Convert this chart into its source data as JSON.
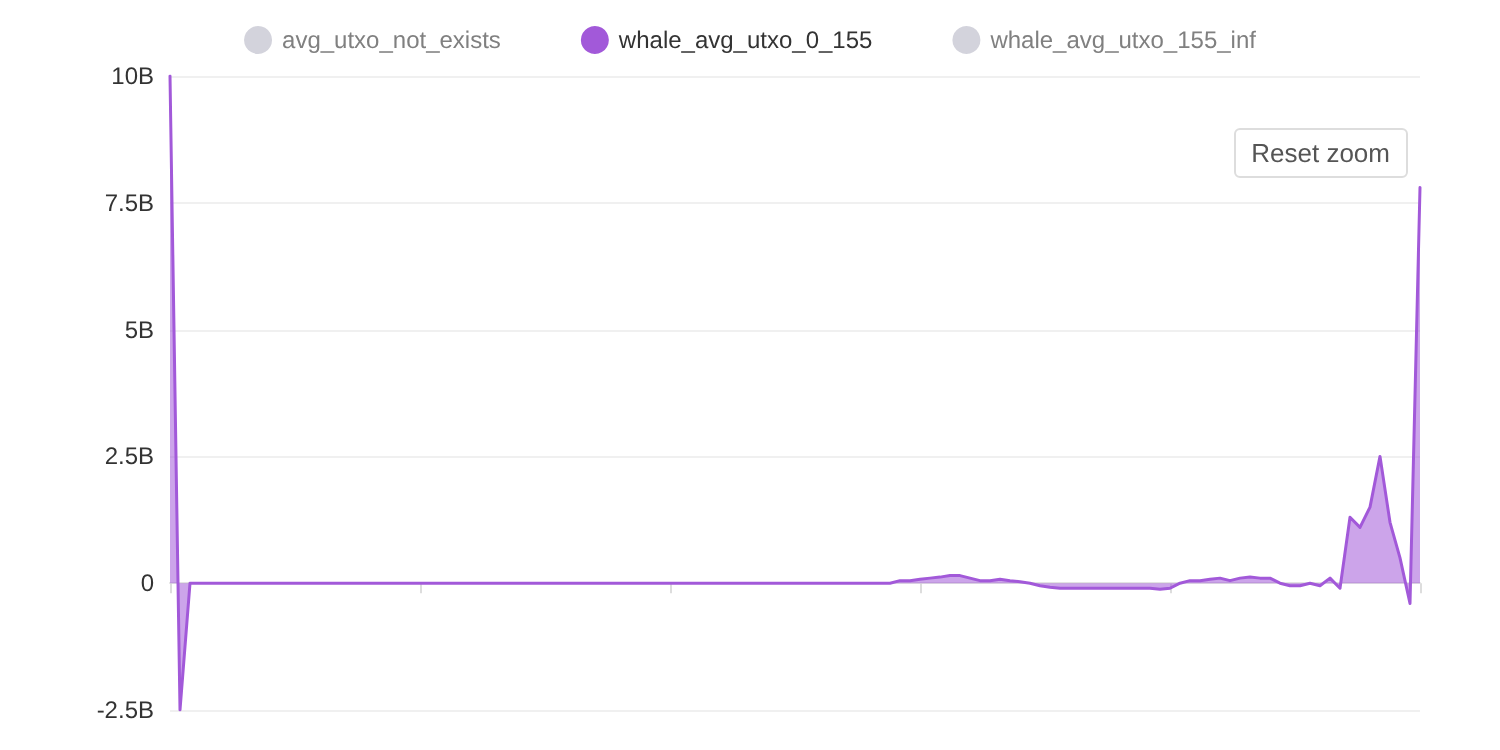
{
  "chart_data": {
    "type": "area",
    "categories": [
      null,
      null,
      null,
      null,
      null,
      null,
      null,
      null,
      null,
      null,
      null,
      null,
      null,
      null,
      null,
      null,
      null,
      null,
      null,
      null,
      null,
      null,
      null,
      null,
      null,
      null,
      null,
      null,
      null,
      null,
      null,
      null,
      null,
      null,
      null,
      null,
      null,
      null,
      null,
      null,
      null,
      null,
      null,
      null,
      null,
      null,
      null,
      null,
      null,
      null,
      null,
      null,
      null,
      null,
      null,
      null,
      null,
      null,
      null,
      null,
      null,
      null,
      null,
      null,
      null,
      null,
      null,
      null,
      null,
      null,
      null,
      null,
      null,
      null,
      null,
      null,
      null,
      null,
      null,
      null,
      null,
      null,
      null,
      null,
      null,
      null,
      null,
      null,
      null,
      null,
      null,
      null,
      null,
      null,
      null,
      null,
      null,
      null,
      null,
      null,
      null,
      null,
      null,
      null,
      null,
      null,
      null,
      null,
      null,
      null,
      null,
      null,
      null,
      null,
      null,
      null,
      null,
      null,
      null,
      null,
      null,
      null,
      null,
      null,
      null,
      null
    ],
    "series": [
      {
        "name": "avg_utxo_not_exists",
        "color": "#d3d3dc",
        "values": [
          null,
          null,
          null,
          null,
          null,
          null,
          null,
          null,
          null,
          null,
          null,
          null,
          null,
          null,
          null,
          null,
          null,
          null,
          null,
          null,
          null,
          null,
          null,
          null,
          null,
          null,
          null,
          null,
          null,
          null,
          null,
          null,
          null,
          null,
          null,
          null,
          null,
          null,
          null,
          null,
          null,
          null,
          null,
          null,
          null,
          null,
          null,
          null,
          null,
          null,
          null,
          null,
          null,
          null,
          null,
          null,
          null,
          null,
          null,
          null,
          null,
          null,
          null,
          null,
          null,
          null,
          null,
          null,
          null,
          null,
          null,
          null,
          null,
          null,
          null,
          null,
          null,
          null,
          null,
          null,
          null,
          null,
          null,
          null,
          null,
          null,
          null,
          null,
          null,
          null,
          null,
          null,
          null,
          null,
          null,
          null,
          null,
          null,
          null,
          null,
          null,
          null,
          null,
          null,
          null,
          null,
          null,
          null,
          null,
          null,
          null,
          null,
          null,
          null,
          null,
          null,
          null,
          null,
          null,
          null,
          null,
          null,
          null,
          null,
          null,
          null
        ]
      },
      {
        "name": "whale_avg_utxo_0_155",
        "color": "#a259d9",
        "values": [
          10,
          -2.5,
          0,
          0,
          0,
          0,
          0,
          0,
          0,
          0,
          0,
          0,
          0,
          0,
          0,
          0,
          0,
          0,
          0,
          0,
          0,
          0,
          0,
          0,
          0,
          0,
          0,
          0,
          0,
          0,
          0,
          0,
          0,
          0,
          0,
          0,
          0,
          0,
          0,
          0,
          0,
          0,
          0,
          0,
          0,
          0,
          0,
          0,
          0,
          0,
          0,
          0,
          0,
          0,
          0,
          0,
          0,
          0,
          0,
          0,
          0,
          0,
          0,
          0,
          0,
          0,
          0,
          0,
          0,
          0,
          0,
          0,
          0,
          0.05,
          0.05,
          0.08,
          0.1,
          0.12,
          0.15,
          0.15,
          0.1,
          0.05,
          0.05,
          0.08,
          0.05,
          0.03,
          0,
          -0.05,
          -0.08,
          -0.1,
          -0.1,
          -0.1,
          -0.1,
          -0.1,
          -0.1,
          -0.1,
          -0.1,
          -0.1,
          -0.1,
          -0.12,
          -0.1,
          0,
          0.05,
          0.05,
          0.08,
          0.1,
          0.05,
          0.1,
          0.12,
          0.1,
          0.1,
          0,
          -0.05,
          -0.05,
          0,
          -0.05,
          0.1,
          -0.1,
          1.3,
          1.1,
          1.5,
          2.5,
          1.2,
          0.5,
          -0.4,
          7.8
        ]
      },
      {
        "name": "whale_avg_utxo_155_inf",
        "color": "#d3d3dc",
        "values": [
          null,
          null,
          null,
          null,
          null,
          null,
          null,
          null,
          null,
          null,
          null,
          null,
          null,
          null,
          null,
          null,
          null,
          null,
          null,
          null,
          null,
          null,
          null,
          null,
          null,
          null,
          null,
          null,
          null,
          null,
          null,
          null,
          null,
          null,
          null,
          null,
          null,
          null,
          null,
          null,
          null,
          null,
          null,
          null,
          null,
          null,
          null,
          null,
          null,
          null,
          null,
          null,
          null,
          null,
          null,
          null,
          null,
          null,
          null,
          null,
          null,
          null,
          null,
          null,
          null,
          null,
          null,
          null,
          null,
          null,
          null,
          null,
          null,
          null,
          null,
          null,
          null,
          null,
          null,
          null,
          null,
          null,
          null,
          null,
          null,
          null,
          null,
          null,
          null,
          null,
          null,
          null,
          null,
          null,
          null,
          null,
          null,
          null,
          null,
          null,
          null,
          null,
          null,
          null,
          null,
          null,
          null,
          null,
          null,
          null,
          null,
          null,
          null,
          null,
          null,
          null,
          null,
          null,
          null,
          null,
          null,
          null,
          null,
          null,
          null,
          null
        ]
      }
    ],
    "ylim": [
      -2.5,
      10
    ],
    "yticks": [
      {
        "value": -2.5,
        "label": "-2.5B"
      },
      0,
      {
        "value": 2.5,
        "label": "2.5B"
      },
      {
        "value": 5,
        "label": "5B"
      },
      {
        "value": 7.5,
        "label": "7.5B"
      },
      {
        "value": 10,
        "label": "10B"
      }
    ],
    "grid": "y",
    "legend": "top",
    "tick_labels": "y",
    "line_style": "solid",
    "annotations": [
      "Reset zoom"
    ]
  }
}
